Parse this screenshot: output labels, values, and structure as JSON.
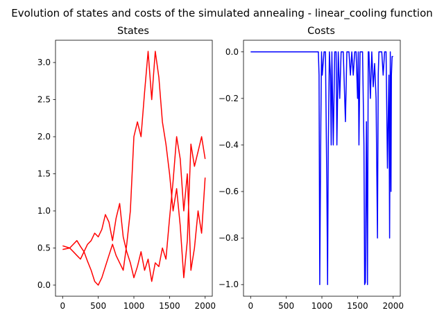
{
  "figure": {
    "suptitle": "Evolution of states and costs of the simulated annealing - linear_cooling function"
  },
  "chart_data": [
    {
      "type": "line",
      "title": "States",
      "xlabel": "",
      "ylabel": "",
      "xlim": [
        -100,
        2100
      ],
      "ylim": [
        -0.15,
        3.3
      ],
      "xticks": [
        0,
        500,
        1000,
        1500,
        2000
      ],
      "xtick_labels": [
        "0",
        "500",
        "1000",
        "1500",
        "2000"
      ],
      "yticks": [
        0.0,
        0.5,
        1.0,
        1.5,
        2.0,
        2.5,
        3.0
      ],
      "ytick_labels": [
        "0.0",
        "0.5",
        "1.0",
        "1.5",
        "2.0",
        "2.5",
        "3.0"
      ],
      "grid": false,
      "color": "#ff0000",
      "series": [
        {
          "x": [
            0,
            100,
            150,
            200,
            250,
            300,
            350,
            400,
            450,
            500,
            550,
            600,
            650,
            700,
            750,
            800,
            850,
            900,
            950,
            1000,
            1050,
            1100,
            1150,
            1200,
            1250,
            1300,
            1350,
            1400,
            1450,
            1500,
            1550,
            1600,
            1650,
            1700,
            1750,
            1800,
            1850,
            1900,
            1950,
            2000
          ],
          "values": [
            0.53,
            0.5,
            0.55,
            0.6,
            0.52,
            0.45,
            0.32,
            0.2,
            0.05,
            0.0,
            0.1,
            0.25,
            0.4,
            0.55,
            0.4,
            0.3,
            0.2,
            0.55,
            1.0,
            2.0,
            2.2,
            2.0,
            2.6,
            3.15,
            2.5,
            3.15,
            2.8,
            2.2,
            1.9,
            1.5,
            1.0,
            1.3,
            0.8,
            0.1,
            0.6,
            1.9,
            1.6,
            1.8,
            2.0,
            1.7
          ]
        },
        {
          "x": [
            0,
            100,
            150,
            200,
            250,
            300,
            350,
            400,
            450,
            500,
            550,
            600,
            650,
            700,
            750,
            800,
            850,
            900,
            950,
            1000,
            1050,
            1100,
            1150,
            1200,
            1250,
            1300,
            1350,
            1400,
            1450,
            1500,
            1550,
            1600,
            1650,
            1700,
            1750,
            1800,
            1850,
            1900,
            1950,
            2000
          ],
          "values": [
            0.48,
            0.5,
            0.45,
            0.4,
            0.35,
            0.45,
            0.55,
            0.6,
            0.7,
            0.65,
            0.75,
            0.95,
            0.85,
            0.6,
            0.9,
            1.1,
            0.65,
            0.45,
            0.3,
            0.1,
            0.25,
            0.45,
            0.2,
            0.35,
            0.05,
            0.3,
            0.25,
            0.5,
            0.35,
            0.9,
            1.4,
            2.0,
            1.7,
            1.0,
            1.5,
            0.2,
            0.5,
            1.0,
            0.7,
            1.45
          ]
        }
      ]
    },
    {
      "type": "line",
      "title": "Costs",
      "xlabel": "",
      "ylabel": "",
      "xlim": [
        -100,
        2100
      ],
      "ylim": [
        -1.05,
        0.05
      ],
      "xticks": [
        0,
        500,
        1000,
        1500,
        2000
      ],
      "xtick_labels": [
        "0",
        "500",
        "1000",
        "1500",
        "2000"
      ],
      "yticks": [
        0.0,
        -0.2,
        -0.4,
        -0.6,
        -0.8,
        -1.0
      ],
      "ytick_labels": [
        "0.0",
        "−0.2",
        "−0.4",
        "−0.6",
        "−0.8",
        "−1.0"
      ],
      "grid": false,
      "color": "#0000ff",
      "series": [
        {
          "x": [
            0,
            930,
            950,
            960,
            970,
            985,
            995,
            1005,
            1030,
            1050,
            1070,
            1080,
            1090,
            1105,
            1120,
            1130,
            1140,
            1160,
            1180,
            1200,
            1210,
            1230,
            1250,
            1270,
            1300,
            1330,
            1350,
            1360,
            1380,
            1400,
            1420,
            1440,
            1460,
            1480,
            1500,
            1510,
            1520,
            1535,
            1550,
            1570,
            1590,
            1600,
            1610,
            1625,
            1640,
            1650,
            1660,
            1680,
            1700,
            1720,
            1740,
            1760,
            1780,
            1790,
            1800,
            1820,
            1840,
            1860,
            1880,
            1900,
            1920,
            1940,
            1950,
            1960,
            1970,
            1975,
            1985,
            2000
          ],
          "values": [
            0.0,
            0.0,
            0.0,
            -0.1,
            -1.0,
            -0.3,
            0.0,
            -0.1,
            0.0,
            0.0,
            -0.6,
            -1.0,
            -0.4,
            0.0,
            -0.1,
            -0.4,
            0.0,
            -0.4,
            0.0,
            0.0,
            -0.4,
            0.0,
            -0.2,
            0.0,
            0.0,
            -0.3,
            0.0,
            0.0,
            0.0,
            -0.1,
            0.0,
            -0.1,
            0.0,
            0.0,
            -0.2,
            0.0,
            -0.4,
            0.0,
            0.0,
            0.0,
            -0.4,
            -1.0,
            -0.99,
            -0.3,
            -1.0,
            0.0,
            0.0,
            -0.2,
            0.0,
            -0.15,
            -0.05,
            -0.2,
            -0.8,
            -0.1,
            0.0,
            0.0,
            0.0,
            -0.1,
            0.0,
            0.0,
            -0.5,
            -0.1,
            -0.8,
            0.0,
            -0.6,
            -0.1,
            -0.02,
            -0.02
          ]
        }
      ]
    }
  ]
}
